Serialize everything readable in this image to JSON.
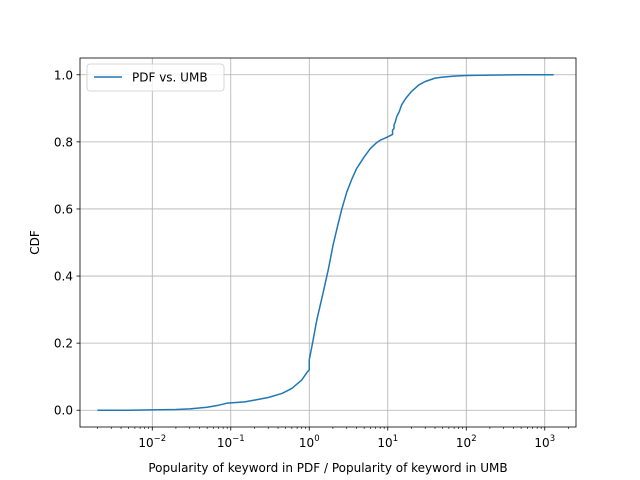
{
  "chart_data": {
    "type": "line",
    "xlabel": "Popularity of keyword in PDF / Popularity of keyword in UMB",
    "ylabel": "CDF",
    "xscale": "log",
    "xlim": [
      0.0012,
      2500
    ],
    "ylim": [
      -0.05,
      1.05
    ],
    "grid": true,
    "legend_position": "top-left",
    "x_ticks": [
      {
        "value": 0.01,
        "base": "10",
        "exp": "−2"
      },
      {
        "value": 0.1,
        "base": "10",
        "exp": "−1"
      },
      {
        "value": 1,
        "base": "10",
        "exp": "0"
      },
      {
        "value": 10,
        "base": "10",
        "exp": "1"
      },
      {
        "value": 100,
        "base": "10",
        "exp": "2"
      },
      {
        "value": 1000,
        "base": "10",
        "exp": "3"
      }
    ],
    "y_ticks": [
      {
        "value": 0.0,
        "label": "0.0"
      },
      {
        "value": 0.2,
        "label": "0.2"
      },
      {
        "value": 0.4,
        "label": "0.4"
      },
      {
        "value": 0.6,
        "label": "0.6"
      },
      {
        "value": 0.8,
        "label": "0.8"
      },
      {
        "value": 1.0,
        "label": "1.0"
      }
    ],
    "series": [
      {
        "name": "PDF vs. UMB",
        "color": "#1f77b4",
        "x": [
          0.002,
          0.005,
          0.01,
          0.02,
          0.03,
          0.05,
          0.07,
          0.09,
          0.1,
          0.15,
          0.2,
          0.3,
          0.45,
          0.6,
          0.8,
          0.95,
          1.0,
          1.0,
          1.1,
          1.25,
          1.5,
          1.75,
          2.0,
          2.3,
          2.6,
          3.0,
          3.5,
          4.0,
          5.0,
          6.0,
          7.0,
          8.0,
          9.0,
          10.0,
          11.0,
          11.5,
          11.5,
          12.0,
          12.0,
          12.5,
          13.0,
          14.0,
          15.0,
          17.0,
          20.0,
          25.0,
          30.0,
          40.0,
          50.0,
          70.0,
          100.0,
          200.0,
          500.0,
          1300.0
        ],
        "y": [
          0.0,
          0.0,
          0.001,
          0.002,
          0.004,
          0.009,
          0.015,
          0.021,
          0.022,
          0.025,
          0.03,
          0.038,
          0.05,
          0.065,
          0.09,
          0.115,
          0.12,
          0.15,
          0.2,
          0.27,
          0.35,
          0.42,
          0.49,
          0.55,
          0.6,
          0.65,
          0.69,
          0.72,
          0.755,
          0.78,
          0.795,
          0.805,
          0.81,
          0.815,
          0.82,
          0.822,
          0.835,
          0.84,
          0.85,
          0.86,
          0.875,
          0.89,
          0.91,
          0.93,
          0.95,
          0.97,
          0.98,
          0.99,
          0.993,
          0.996,
          0.998,
          0.999,
          1.0,
          1.0
        ]
      }
    ]
  }
}
